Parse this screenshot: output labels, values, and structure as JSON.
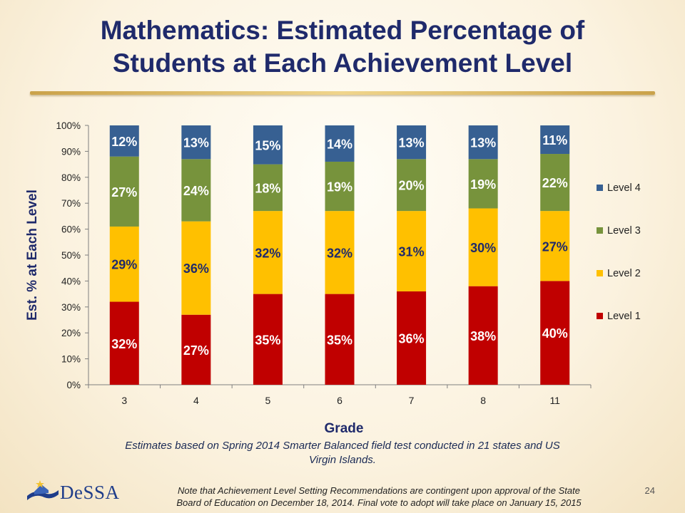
{
  "slide": {
    "title_line1": "Mathematics:  Estimated Percentage of",
    "title_line2": "Students at Each Achievement Level",
    "caption_line1": "Estimates based on Spring 2014 Smarter Balanced field test conducted in 21 states and US",
    "caption_line2": "Virgin Islands.",
    "note_line1": "Note that Achievement Level Setting Recommendations are contingent upon approval of the State",
    "note_line2": "Board of Education on December 18, 2014. Final vote to adopt will take place on January 15, 2015",
    "page_number": "24",
    "logo_text": "DeSSA"
  },
  "chart_data": {
    "type": "bar",
    "stacked": true,
    "title": "",
    "xlabel": "Grade",
    "ylabel": "Est. % at Each Level",
    "ylim": [
      0,
      100
    ],
    "y_ticks": [
      "0%",
      "10%",
      "20%",
      "30%",
      "40%",
      "50%",
      "60%",
      "70%",
      "80%",
      "90%",
      "100%"
    ],
    "categories": [
      "3",
      "4",
      "5",
      "6",
      "7",
      "8",
      "11"
    ],
    "series": [
      {
        "name": "Level 1",
        "color": "#c00000",
        "values": [
          32,
          27,
          35,
          35,
          36,
          38,
          40
        ]
      },
      {
        "name": "Level 2",
        "color": "#ffc000",
        "values": [
          29,
          36,
          32,
          32,
          31,
          30,
          27
        ]
      },
      {
        "name": "Level 3",
        "color": "#77933c",
        "values": [
          27,
          24,
          18,
          19,
          20,
          19,
          22
        ]
      },
      {
        "name": "Level 4",
        "color": "#376092",
        "values": [
          12,
          13,
          15,
          14,
          13,
          13,
          11
        ]
      }
    ],
    "legend_order": [
      "Level 4",
      "Level 3",
      "Level 2",
      "Level 1"
    ],
    "legend": "right",
    "grid": false,
    "data_label_colors": {
      "Level 1": "#ffffff",
      "Level 2": "#1f2a6b",
      "Level 3": "#ffffff",
      "Level 4": "#ffffff"
    }
  }
}
